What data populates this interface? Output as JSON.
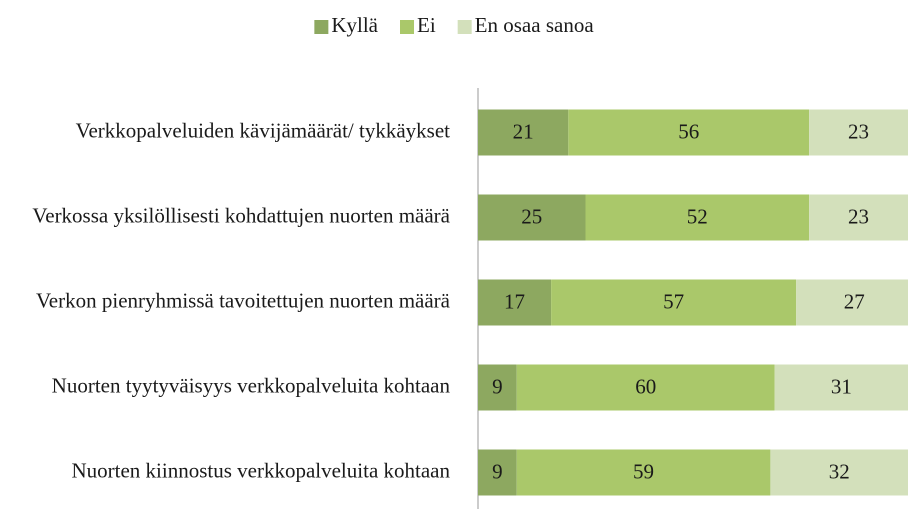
{
  "chart_data": {
    "type": "stacked-bar-horizontal",
    "categories": [
      "Verkkopalveluiden kävijämäärät/ tykkäykset",
      "Verkossa yksilöllisesti kohdattujen nuorten määrä",
      "Verkon pienryhmissä tavoitettujen nuorten määrä",
      "Nuorten tyytyväisyys verkkopalveluita kohtaan",
      "Nuorten kiinnostus verkkopalveluita kohtaan"
    ],
    "series": [
      {
        "name": "Kyllä",
        "color": "#8da860",
        "values": [
          21,
          25,
          17,
          9,
          9
        ]
      },
      {
        "name": "Ei",
        "color": "#aac86a",
        "values": [
          56,
          52,
          57,
          60,
          59
        ]
      },
      {
        "name": "En osaa sanoa",
        "color": "#d3e0bb",
        "values": [
          23,
          23,
          27,
          31,
          32
        ]
      }
    ],
    "xlim": [
      0,
      100
    ],
    "legend": "top"
  }
}
